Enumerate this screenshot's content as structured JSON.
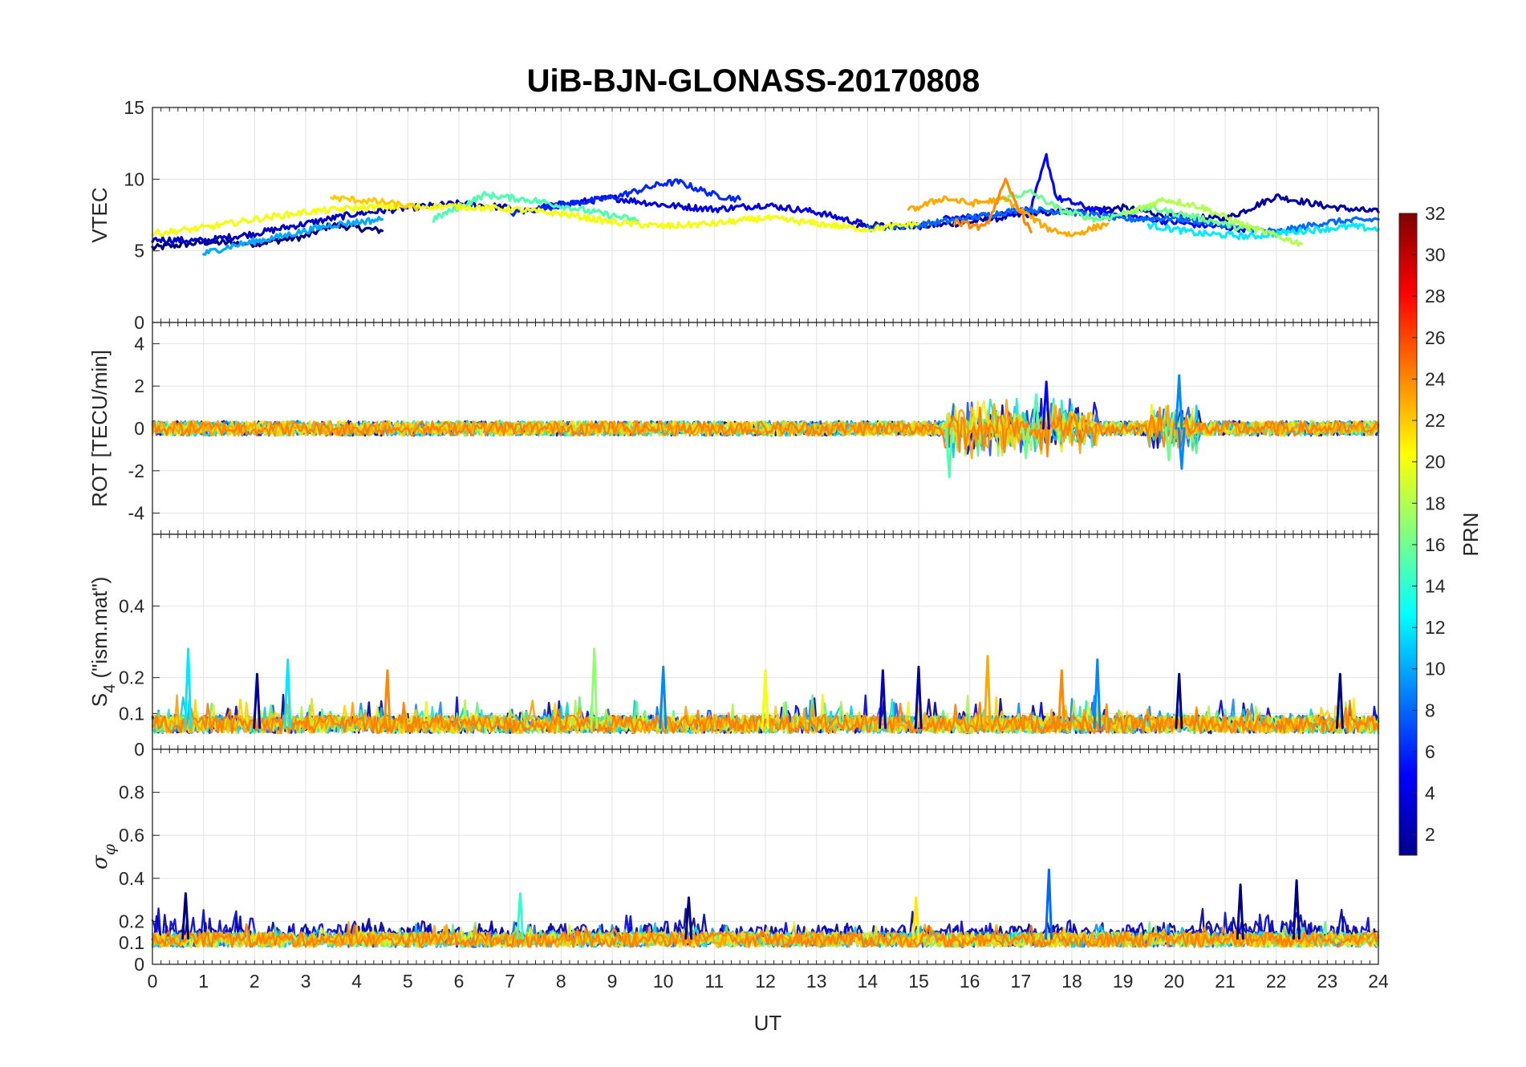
{
  "chart_data": {
    "type": "line",
    "title": "UiB-BJN-GLONASS-20170808",
    "xlabel": "UT",
    "xlim": [
      0,
      24
    ],
    "x_ticks": [
      "0",
      "1",
      "2",
      "3",
      "4",
      "5",
      "6",
      "7",
      "8",
      "9",
      "10",
      "11",
      "12",
      "13",
      "14",
      "15",
      "16",
      "17",
      "18",
      "19",
      "20",
      "21",
      "22",
      "23",
      "24"
    ],
    "grid": true,
    "colorbar": {
      "label": "PRN",
      "colormap": "jet",
      "range": [
        1,
        32
      ],
      "ticks": [
        "2",
        "4",
        "6",
        "8",
        "10",
        "12",
        "14",
        "16",
        "18",
        "20",
        "22",
        "24",
        "26",
        "28",
        "30",
        "32"
      ]
    },
    "series_colors": [
      "#00008f",
      "#0000d6",
      "#1d4ff0",
      "#1487f0",
      "#00c8f0",
      "#1ee6c8",
      "#5cf08a",
      "#aef050",
      "#f0f01e",
      "#ffd000",
      "#ff9e00",
      "#ff7a00"
    ],
    "panels": [
      {
        "ylabel": "VTEC",
        "ylim": [
          0,
          15
        ],
        "y_ticks": [
          "0",
          "5",
          "10",
          "15"
        ],
        "tracks": [
          {
            "prn": 1,
            "x": [
              0,
              1,
              2,
              3,
              3.5,
              4.5
            ],
            "y": [
              5.2,
              5.6,
              5.5,
              6.0,
              6.8,
              6.4
            ]
          },
          {
            "prn": 2,
            "x": [
              13.8,
              15,
              16,
              17,
              18,
              19,
              20,
              21,
              22,
              23,
              24
            ],
            "y": [
              6.8,
              6.7,
              7.0,
              7.5,
              7.8,
              8.0,
              7.4,
              7.2,
              8.8,
              8.1,
              7.7
            ]
          },
          {
            "prn": 3,
            "x": [
              0,
              1,
              2,
              3,
              4,
              5,
              6,
              7
            ],
            "y": [
              5.8,
              5.7,
              6.2,
              6.9,
              7.6,
              8.0,
              8.3,
              8.0
            ]
          },
          {
            "prn": 4,
            "x": [
              7.5,
              9,
              10,
              11,
              12,
              13,
              14
            ],
            "y": [
              8.0,
              8.7,
              8.2,
              7.9,
              8.2,
              7.7,
              6.8
            ]
          },
          {
            "prn": 5,
            "x": [
              15.5,
              16.5,
              17.2,
              17.5,
              17.7,
              18.5,
              19.5,
              20.5,
              21.5
            ],
            "y": [
              7.2,
              7.5,
              7.9,
              11.6,
              8.7,
              7.8,
              7.2,
              6.8,
              6.5
            ]
          },
          {
            "prn": 6,
            "x": [
              7,
              8,
              9,
              10,
              10.3,
              11,
              11.5
            ],
            "y": [
              7.6,
              8.2,
              8.7,
              9.7,
              9.8,
              8.9,
              8.6
            ]
          },
          {
            "prn": 8,
            "x": [
              14,
              15,
              16,
              17,
              18,
              19,
              20,
              21,
              22,
              23,
              24
            ],
            "y": [
              6.6,
              6.8,
              7.3,
              7.9,
              7.7,
              7.2,
              7.3,
              6.8,
              6.3,
              7.0,
              7.2
            ]
          },
          {
            "prn": 10,
            "x": [
              1,
              1.5,
              2.5,
              3.5,
              4.5
            ],
            "y": [
              4.8,
              5.3,
              6.0,
              6.8,
              7.2
            ]
          },
          {
            "prn": 12,
            "x": [
              19.5,
              20.5,
              21.5,
              22.5,
              23.5,
              24
            ],
            "y": [
              6.8,
              6.2,
              6.0,
              6.4,
              6.7,
              6.5
            ]
          },
          {
            "prn": 15,
            "x": [
              5.5,
              6.5,
              7.5,
              8.5,
              9.5
            ],
            "y": [
              7.2,
              8.9,
              8.5,
              7.8,
              7.1
            ]
          },
          {
            "prn": 16,
            "x": [
              16.5,
              17.2,
              17.8,
              18.5,
              19.5,
              20.5,
              21.5
            ],
            "y": [
              8.5,
              9.1,
              7.8,
              7.2,
              8.0,
              7.3,
              6.4
            ]
          },
          {
            "prn": 18,
            "x": [
              19,
              19.8,
              20.5,
              21.5,
              22.5
            ],
            "y": [
              7.5,
              8.6,
              8.1,
              6.6,
              5.5
            ]
          },
          {
            "prn": 20,
            "x": [
              0,
              1,
              2,
              3,
              4,
              5,
              6,
              7,
              8,
              9,
              10,
              11,
              12,
              13,
              14,
              15
            ],
            "y": [
              6.2,
              6.6,
              7.2,
              7.7,
              8.0,
              8.1,
              8.1,
              7.9,
              7.6,
              7.0,
              6.7,
              6.9,
              7.3,
              6.9,
              6.5,
              6.9
            ]
          },
          {
            "prn": 22,
            "x": [
              3.5,
              4.5,
              5.2
            ],
            "y": [
              8.7,
              8.4,
              8.0
            ]
          },
          {
            "prn": 23,
            "x": [
              14.8,
              15.5,
              16,
              16.7,
              17.5,
              18,
              18.7
            ],
            "y": [
              7.8,
              8.7,
              8.3,
              8.6,
              6.6,
              6.1,
              6.9
            ]
          },
          {
            "prn": 24,
            "x": [
              15.7,
              16.3,
              16.7,
              17.2
            ],
            "y": [
              7.0,
              6.6,
              9.8,
              6.3
            ]
          }
        ]
      },
      {
        "ylabel": "ROT [TECU/min]",
        "ylim": [
          -5,
          5
        ],
        "y_ticks": [
          "-4",
          "-2",
          "0",
          "2",
          "4"
        ],
        "spikes": [
          {
            "x": 17.5,
            "y": 2.2,
            "prn": 5
          },
          {
            "x": 20.1,
            "y": 2.5,
            "prn": 9
          },
          {
            "x": 15.6,
            "y": -2.3,
            "prn": 15
          },
          {
            "x": 20.15,
            "y": -1.9,
            "prn": 9
          },
          {
            "x": 17.3,
            "y": 1.6,
            "prn": 15
          },
          {
            "x": 17.1,
            "y": -1.4,
            "prn": 16
          },
          {
            "x": 19.9,
            "y": -1.5,
            "prn": 16
          }
        ]
      },
      {
        "ylabel": "S",
        "ylabel_sub": "4",
        "ylabel_suffix": " (\"ism.mat\")",
        "ylim": [
          0,
          0.6
        ],
        "y_ticks": [
          "0",
          "0.1",
          "0.2",
          "0.4"
        ],
        "spikes": [
          {
            "x": 0.7,
            "y": 0.28,
            "prn": 12
          },
          {
            "x": 2.65,
            "y": 0.25,
            "prn": 12
          },
          {
            "x": 2.05,
            "y": 0.21,
            "prn": 2
          },
          {
            "x": 4.6,
            "y": 0.22,
            "prn": 24
          },
          {
            "x": 8.65,
            "y": 0.28,
            "prn": 17
          },
          {
            "x": 10.0,
            "y": 0.23,
            "prn": 9
          },
          {
            "x": 14.3,
            "y": 0.22,
            "prn": 3
          },
          {
            "x": 15.0,
            "y": 0.23,
            "prn": 2
          },
          {
            "x": 16.35,
            "y": 0.26,
            "prn": 23
          },
          {
            "x": 17.8,
            "y": 0.22,
            "prn": 24
          },
          {
            "x": 18.5,
            "y": 0.25,
            "prn": 9
          },
          {
            "x": 20.1,
            "y": 0.21,
            "prn": 1
          },
          {
            "x": 12.0,
            "y": 0.22,
            "prn": 20
          },
          {
            "x": 23.25,
            "y": 0.21,
            "prn": 1
          }
        ]
      },
      {
        "ylabel": "σ",
        "ylabel_sub": "φ",
        "ylim": [
          0,
          1
        ],
        "y_ticks": [
          "0",
          "0.1",
          "0.2",
          "0.4",
          "0.6",
          "0.8"
        ],
        "spikes": [
          {
            "x": 17.55,
            "y": 0.44,
            "prn": 8
          },
          {
            "x": 0.65,
            "y": 0.33,
            "prn": 1
          },
          {
            "x": 7.2,
            "y": 0.33,
            "prn": 14
          },
          {
            "x": 14.95,
            "y": 0.31,
            "prn": 21
          },
          {
            "x": 22.4,
            "y": 0.39,
            "prn": 1
          },
          {
            "x": 21.3,
            "y": 0.37,
            "prn": 1
          },
          {
            "x": 10.5,
            "y": 0.31,
            "prn": 1
          }
        ]
      }
    ]
  }
}
